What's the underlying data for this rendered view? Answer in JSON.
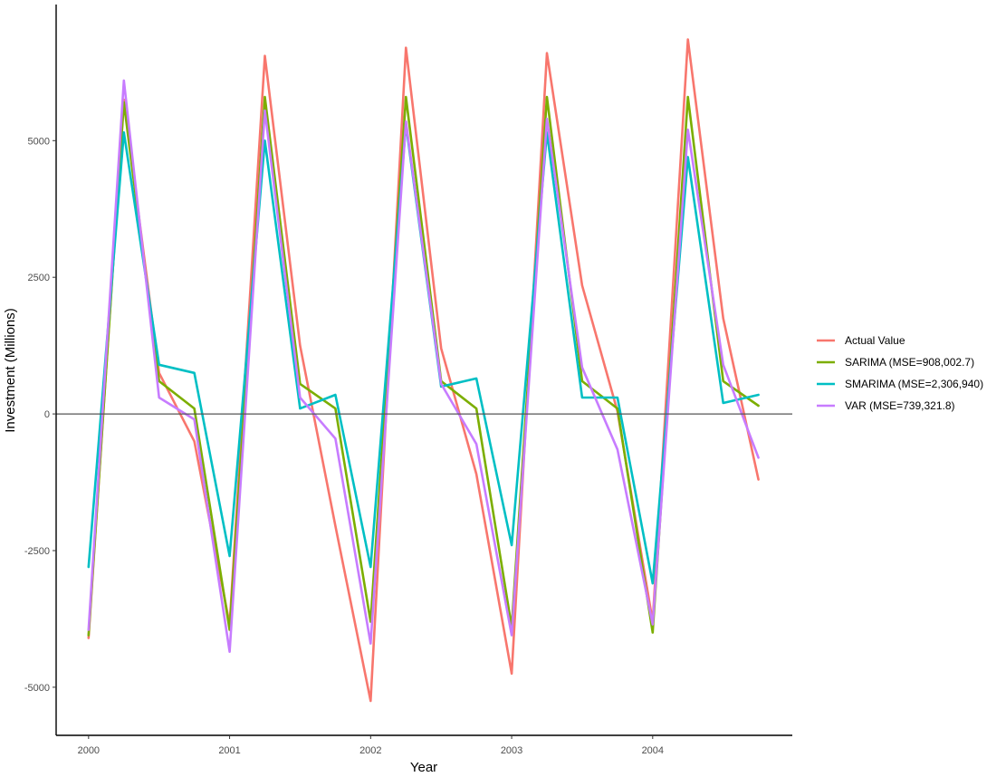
{
  "chart_data": {
    "type": "line",
    "xlabel": "Year",
    "ylabel": "Investment (Millions)",
    "x": [
      2000.0,
      2000.25,
      2000.5,
      2000.75,
      2001.0,
      2001.25,
      2001.5,
      2001.75,
      2002.0,
      2002.25,
      2002.5,
      2002.75,
      2003.0,
      2003.25,
      2003.5,
      2003.75,
      2004.0,
      2004.25,
      2004.5,
      2004.75
    ],
    "xticks": [
      "2000",
      "2001",
      "2002",
      "2003",
      "2004"
    ],
    "xtick_values": [
      2000,
      2001,
      2002,
      2003,
      2004
    ],
    "yticks": [
      "-5000",
      "-2500",
      "0",
      "2500",
      "5000"
    ],
    "ytick_values": [
      -5000,
      -2500,
      0,
      2500,
      5000
    ],
    "xlim": [
      1999.77,
      2004.99
    ],
    "ylim": [
      -5880,
      7490
    ],
    "reference_line_y": 0,
    "grid": false,
    "legend_position": "right",
    "series": [
      {
        "name": "Actual Value",
        "color": "#F8766D",
        "values": [
          -4100,
          5750,
          750,
          -500,
          -3850,
          6550,
          1250,
          -2050,
          -5250,
          6700,
          1200,
          -1100,
          -4750,
          6600,
          2350,
          50,
          -3800,
          6850,
          1750,
          -1200
        ]
      },
      {
        "name": "SARIMA (MSE=908,002.7)",
        "color": "#7CAE00",
        "values": [
          -4050,
          5700,
          600,
          100,
          -3950,
          5800,
          550,
          100,
          -3800,
          5800,
          600,
          100,
          -3900,
          5800,
          600,
          100,
          -4000,
          5800,
          600,
          150
        ]
      },
      {
        "name": "SMARIMA (MSE=2,306,940)",
        "color": "#00BFC4",
        "values": [
          -2800,
          5150,
          900,
          750,
          -2600,
          5000,
          100,
          350,
          -2800,
          5300,
          500,
          650,
          -2400,
          5150,
          300,
          300,
          -3100,
          4700,
          200,
          350
        ]
      },
      {
        "name": "VAR (MSE=739,321.8)",
        "color": "#C77CFF",
        "values": [
          -3950,
          6100,
          300,
          -100,
          -4350,
          5550,
          300,
          -450,
          -4200,
          5350,
          550,
          -550,
          -4050,
          5400,
          850,
          -650,
          -3850,
          5200,
          900,
          -800
        ]
      }
    ]
  }
}
